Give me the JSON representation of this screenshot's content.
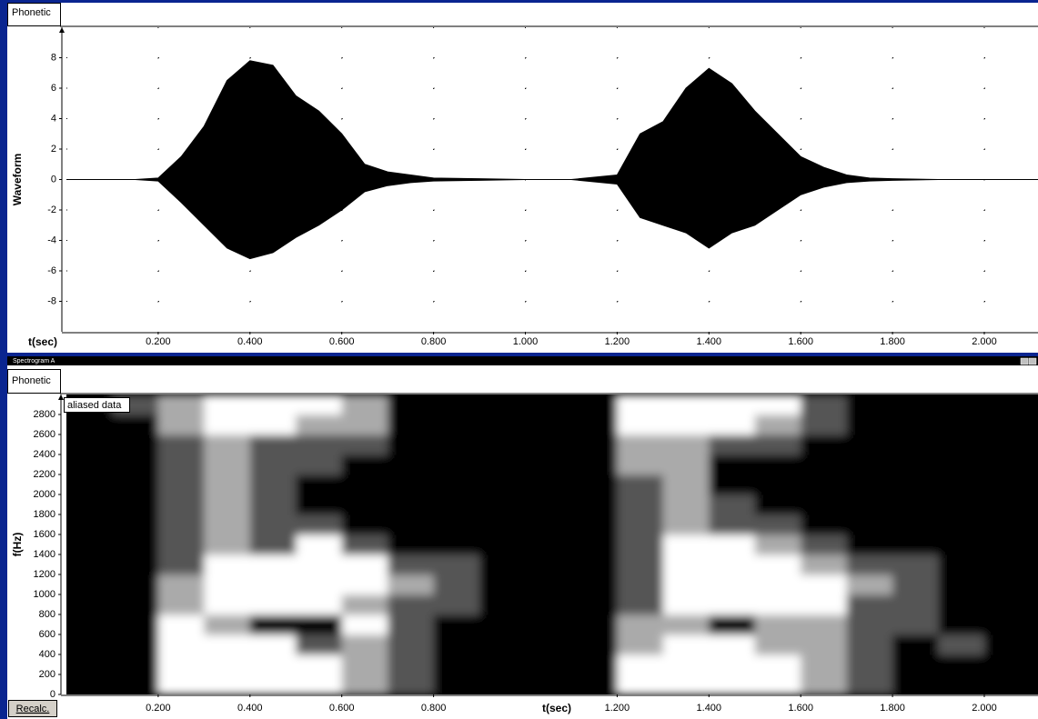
{
  "panes": [
    {
      "tab": "Phonetic"
    },
    {
      "title": "Spectrogram A",
      "tab": "Phonetic",
      "note": "aliased data",
      "button": "Recalc."
    }
  ],
  "chart_data": [
    {
      "type": "envelope",
      "ylabel": "Waveform",
      "xlabel": "t(sec)",
      "color": "#000000",
      "grid": true,
      "xlim": [
        0,
        2.117
      ],
      "ylim": [
        -10,
        10
      ],
      "xticks": [
        {
          "value": 0.2,
          "label": "0.200"
        },
        {
          "value": 0.4,
          "label": "0.400"
        },
        {
          "value": 0.6,
          "label": "0.600"
        },
        {
          "value": 0.8,
          "label": "0.800"
        },
        {
          "value": 1.0,
          "label": "1.000"
        },
        {
          "value": 1.2,
          "label": "1.200"
        },
        {
          "value": 1.4,
          "label": "1.400"
        },
        {
          "value": 1.6,
          "label": "1.600"
        },
        {
          "value": 1.8,
          "label": "1.800"
        },
        {
          "value": 2.0,
          "label": "2.000"
        }
      ],
      "yticks": [
        -8,
        -6,
        -4,
        -2,
        0,
        2,
        4,
        6,
        8
      ],
      "x": [
        0.1,
        0.15,
        0.2,
        0.25,
        0.3,
        0.35,
        0.4,
        0.45,
        0.5,
        0.55,
        0.6,
        0.65,
        0.7,
        0.75,
        0.8,
        0.9,
        1.0,
        1.1,
        1.2,
        1.25,
        1.3,
        1.35,
        1.4,
        1.45,
        1.5,
        1.55,
        1.6,
        1.65,
        1.7,
        1.75,
        1.8,
        1.9,
        2.0,
        2.1
      ],
      "upper": [
        0,
        0,
        0.1,
        1.5,
        3.5,
        6.5,
        7.8,
        7.5,
        5.5,
        4.5,
        3.0,
        1.0,
        0.5,
        0.3,
        0.1,
        0.05,
        0,
        0,
        0.3,
        3.0,
        3.8,
        6.0,
        7.3,
        6.3,
        4.5,
        3.0,
        1.5,
        0.8,
        0.3,
        0.1,
        0.05,
        0,
        0,
        0
      ],
      "lower": [
        0,
        0,
        -0.1,
        -1.5,
        -3.0,
        -4.5,
        -5.2,
        -4.8,
        -3.8,
        -3.0,
        -2.0,
        -0.8,
        -0.4,
        -0.2,
        -0.1,
        -0.05,
        0,
        0,
        -0.3,
        -2.5,
        -3.0,
        -3.5,
        -4.5,
        -3.5,
        -3.0,
        -2.0,
        -1.0,
        -0.5,
        -0.2,
        -0.1,
        -0.05,
        0,
        0,
        0
      ]
    },
    {
      "type": "heatmap",
      "ylabel": "f(Hz)",
      "xlabel": "t(sec)",
      "xlim": [
        0,
        2.117
      ],
      "ylim": [
        0,
        3000
      ],
      "xticks": [
        {
          "value": 0.2,
          "label": "0.200"
        },
        {
          "value": 0.4,
          "label": "0.400"
        },
        {
          "value": 0.6,
          "label": "0.600"
        },
        {
          "value": 0.8,
          "label": "0.800"
        },
        {
          "value": 1.2,
          "label": "1.200"
        },
        {
          "value": 1.4,
          "label": "1.400"
        },
        {
          "value": 1.6,
          "label": "1.600"
        },
        {
          "value": 1.8,
          "label": "1.800"
        },
        {
          "value": 2.0,
          "label": "2.000"
        }
      ],
      "yticks": [
        0,
        200,
        400,
        600,
        800,
        1000,
        1200,
        1400,
        1600,
        1800,
        2000,
        2200,
        2400,
        2600,
        2800
      ],
      "colors": [
        "#000000",
        "#555555",
        "#aaaaaa",
        "#ffffff"
      ],
      "x_bins": [
        0,
        0.1,
        0.2,
        0.3,
        0.4,
        0.5,
        0.6,
        0.7,
        0.8,
        0.9,
        1.0,
        1.1,
        1.2,
        1.3,
        1.4,
        1.5,
        1.6,
        1.7,
        1.8,
        1.9,
        2.0,
        2.1
      ],
      "y_bins": [
        0,
        200,
        400,
        600,
        800,
        1000,
        1200,
        1400,
        1600,
        1800,
        2000,
        2200,
        2400,
        2600,
        2800,
        3000
      ],
      "z": [
        [
          0,
          0,
          0,
          0,
          0,
          0,
          0,
          0,
          0,
          0,
          0,
          0,
          0,
          0,
          0
        ],
        [
          0,
          0,
          0,
          0,
          0,
          0,
          0,
          0,
          0,
          0,
          0,
          0,
          0,
          0,
          1
        ],
        [
          3,
          3,
          3,
          3,
          2,
          2,
          1,
          1,
          1,
          1,
          1,
          1,
          1,
          2,
          2
        ],
        [
          3,
          3,
          3,
          2,
          3,
          3,
          3,
          2,
          2,
          2,
          2,
          2,
          2,
          3,
          3
        ],
        [
          3,
          3,
          3,
          0,
          3,
          3,
          3,
          1,
          1,
          1,
          1,
          1,
          1,
          3,
          3
        ],
        [
          3,
          3,
          1,
          0,
          3,
          3,
          3,
          3,
          1,
          0,
          0,
          1,
          1,
          2,
          3
        ],
        [
          2,
          2,
          2,
          3,
          2,
          3,
          3,
          1,
          0,
          0,
          0,
          0,
          1,
          2,
          2
        ],
        [
          1,
          1,
          1,
          1,
          1,
          2,
          1,
          0,
          0,
          0,
          0,
          0,
          0,
          0,
          0
        ],
        [
          0,
          0,
          0,
          0,
          1,
          1,
          1,
          0,
          0,
          0,
          0,
          0,
          0,
          0,
          0
        ],
        [
          0,
          0,
          0,
          0,
          0,
          0,
          0,
          0,
          0,
          0,
          0,
          0,
          0,
          0,
          0
        ],
        [
          0,
          0,
          0,
          0,
          0,
          0,
          0,
          0,
          0,
          0,
          0,
          0,
          0,
          0,
          0
        ],
        [
          0,
          0,
          0,
          0,
          0,
          0,
          0,
          0,
          0,
          0,
          0,
          0,
          0,
          0,
          0
        ],
        [
          3,
          3,
          2,
          2,
          1,
          1,
          1,
          1,
          1,
          1,
          1,
          2,
          2,
          3,
          3
        ],
        [
          3,
          3,
          3,
          2,
          3,
          3,
          3,
          3,
          2,
          2,
          2,
          2,
          2,
          3,
          3
        ],
        [
          3,
          3,
          3,
          0,
          3,
          3,
          3,
          3,
          1,
          1,
          0,
          0,
          1,
          3,
          3
        ],
        [
          3,
          3,
          2,
          2,
          3,
          3,
          3,
          2,
          1,
          0,
          0,
          0,
          1,
          2,
          3
        ],
        [
          2,
          2,
          2,
          2,
          3,
          3,
          2,
          1,
          0,
          0,
          0,
          0,
          0,
          1,
          1
        ],
        [
          1,
          1,
          1,
          1,
          1,
          2,
          1,
          0,
          0,
          0,
          0,
          0,
          0,
          0,
          0
        ],
        [
          0,
          0,
          0,
          1,
          1,
          1,
          1,
          0,
          0,
          0,
          0,
          0,
          0,
          0,
          0
        ],
        [
          0,
          0,
          1,
          0,
          0,
          0,
          0,
          0,
          0,
          0,
          0,
          0,
          0,
          0,
          0
        ],
        [
          0,
          0,
          0,
          0,
          0,
          0,
          0,
          0,
          0,
          0,
          0,
          0,
          0,
          0,
          0
        ]
      ]
    }
  ]
}
